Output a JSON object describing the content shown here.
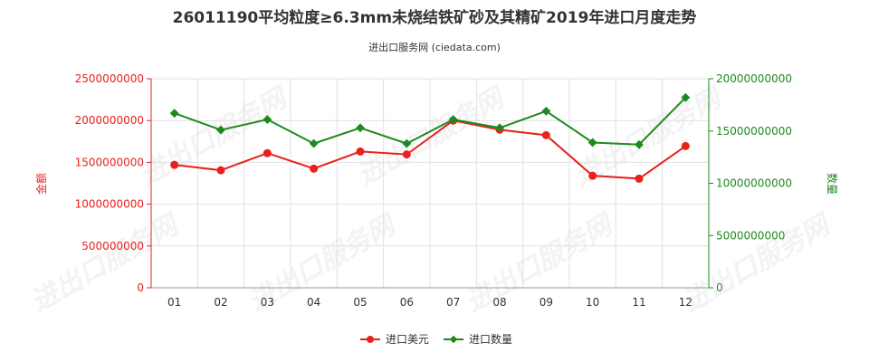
{
  "chart_data": {
    "type": "line",
    "title": "26011190平均粒度≥6.3mm未烧结铁矿砂及其精矿2019年进口月度走势",
    "subtitle": "进出口服务网 (ciedata.com)",
    "categories": [
      "01",
      "02",
      "03",
      "04",
      "05",
      "06",
      "07",
      "08",
      "09",
      "10",
      "11",
      "12"
    ],
    "y_left": {
      "label": "金额",
      "range": [
        0,
        2500000000
      ],
      "ticks": [
        "0",
        "500000000",
        "1000000000",
        "1500000000",
        "2000000000",
        "2500000000"
      ],
      "color": "#e8211d"
    },
    "y_right": {
      "label": "数量",
      "range": [
        0,
        20000000000
      ],
      "ticks": [
        "0",
        "5000000000",
        "10000000000",
        "15000000000",
        "20000000000"
      ],
      "color": "#1e8a1e"
    },
    "series": [
      {
        "name": "进口美元",
        "axis": "left",
        "color": "#e8211d",
        "values": [
          1470000000,
          1405000000,
          1610000000,
          1425000000,
          1630000000,
          1595000000,
          2000000000,
          1890000000,
          1825000000,
          1340000000,
          1305000000,
          1695000000
        ]
      },
      {
        "name": "进口数量",
        "axis": "right",
        "color": "#1e8a1e",
        "values": [
          16700000000,
          15100000000,
          16100000000,
          13800000000,
          15300000000,
          13800000000,
          16100000000,
          15300000000,
          16900000000,
          13900000000,
          13700000000,
          18200000000
        ]
      }
    ],
    "grid": true,
    "legend": "bottom-center"
  },
  "watermark": "进出口服务网"
}
